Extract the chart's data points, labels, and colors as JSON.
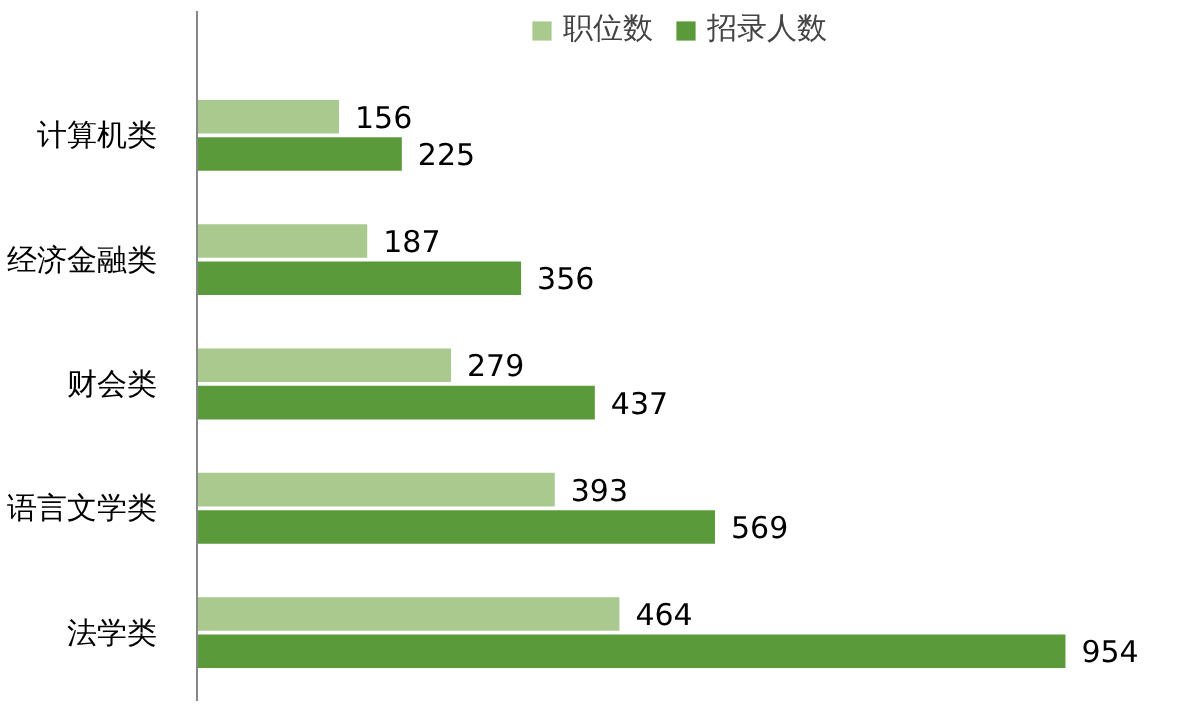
{
  "chart_data": {
    "type": "bar",
    "orientation": "horizontal",
    "categories": [
      "计算机类",
      "经济金融类",
      "财会类",
      "语言文学类",
      "法学类"
    ],
    "series": [
      {
        "name": "职位数",
        "color": "#a9c98f",
        "values": [
          156,
          187,
          279,
          393,
          464
        ]
      },
      {
        "name": "招录人数",
        "color": "#5b9a3a",
        "values": [
          225,
          356,
          437,
          569,
          954
        ]
      }
    ],
    "data_labels": true,
    "legend": "top",
    "grid": false
  }
}
